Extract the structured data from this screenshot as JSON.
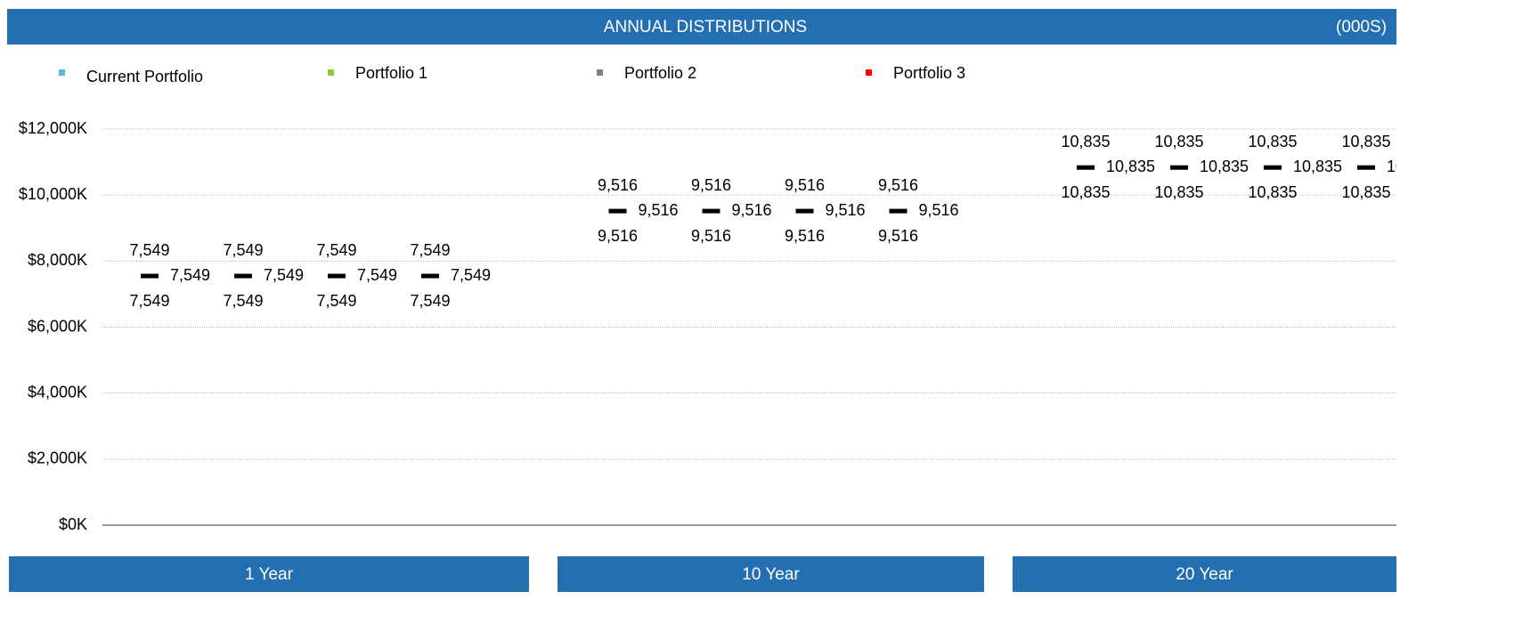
{
  "chart_data": {
    "type": "hilo",
    "title": "ANNUAL DISTRIBUTIONS",
    "subtitle": "(000S)",
    "categories": [
      "1 Year",
      "10 Year",
      "20 Year"
    ],
    "series": [
      {
        "name": "Current Portfolio",
        "color": "#5bb4e5",
        "values": [
          7549,
          9516,
          10835
        ],
        "value_labels": [
          "7,549",
          "9,516",
          "10,835"
        ]
      },
      {
        "name": "Portfolio 1",
        "color": "#8dc63f",
        "values": [
          7549,
          9516,
          10835
        ],
        "value_labels": [
          "7,549",
          "9,516",
          "10,835"
        ]
      },
      {
        "name": "Portfolio 2",
        "color": "#808080",
        "values": [
          7549,
          9516,
          10835
        ],
        "value_labels": [
          "7,549",
          "9,516",
          "10,835"
        ]
      },
      {
        "name": "Portfolio 3",
        "color": "#ff0000",
        "values": [
          7549,
          9516,
          10835
        ],
        "value_labels": [
          "7,549",
          "9,516",
          "10,835"
        ]
      }
    ],
    "mark_color": "#000000",
    "ylim": [
      0,
      12000
    ],
    "yticks": [
      {
        "value": 0,
        "label": "$0K"
      },
      {
        "value": 2000,
        "label": "$2,000K"
      },
      {
        "value": 4000,
        "label": "$4,000K"
      },
      {
        "value": 6000,
        "label": "$6,000K"
      },
      {
        "value": 8000,
        "label": "$8,000K"
      },
      {
        "value": 10000,
        "label": "$10,000K"
      },
      {
        "value": 12000,
        "label": "$12,000K"
      }
    ],
    "grid": true
  }
}
